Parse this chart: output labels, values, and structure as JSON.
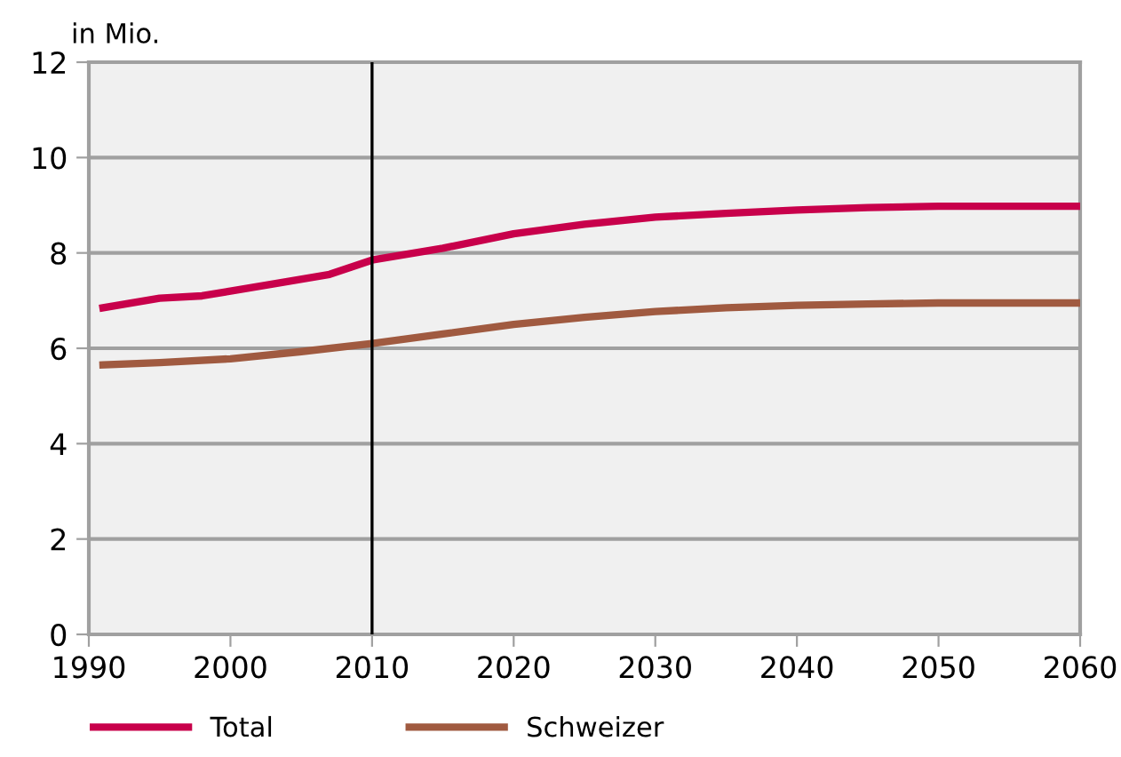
{
  "chart_data": {
    "type": "line",
    "ylabel": "in Mio.",
    "xlim": [
      1990,
      2060
    ],
    "xticks": [
      1990,
      2000,
      2010,
      2020,
      2030,
      2040,
      2050,
      2060
    ],
    "ylim": [
      0,
      12
    ],
    "yticks": [
      0,
      2,
      4,
      6,
      8,
      10,
      12
    ],
    "grid": "y",
    "legend": "bottom",
    "marker": "none",
    "line_style": "solid",
    "ref_lines": [
      {
        "axis": "x",
        "value": 2010,
        "color": "#000000"
      }
    ],
    "series": [
      {
        "name": "Total",
        "color": "#c8004b",
        "x": [
          1991,
          1995,
          1998,
          2000,
          2003,
          2007,
          2010,
          2015,
          2020,
          2025,
          2030,
          2035,
          2040,
          2045,
          2050,
          2060
        ],
        "values": [
          6.85,
          7.05,
          7.1,
          7.2,
          7.35,
          7.55,
          7.85,
          8.1,
          8.4,
          8.6,
          8.75,
          8.83,
          8.9,
          8.95,
          8.98,
          8.98
        ]
      },
      {
        "name": "Schweizer",
        "color": "#a05a40",
        "x": [
          1991,
          1995,
          2000,
          2005,
          2010,
          2015,
          2020,
          2025,
          2030,
          2035,
          2040,
          2045,
          2050,
          2060
        ],
        "values": [
          5.65,
          5.7,
          5.78,
          5.93,
          6.1,
          6.3,
          6.5,
          6.65,
          6.77,
          6.85,
          6.9,
          6.93,
          6.95,
          6.95
        ]
      }
    ]
  }
}
